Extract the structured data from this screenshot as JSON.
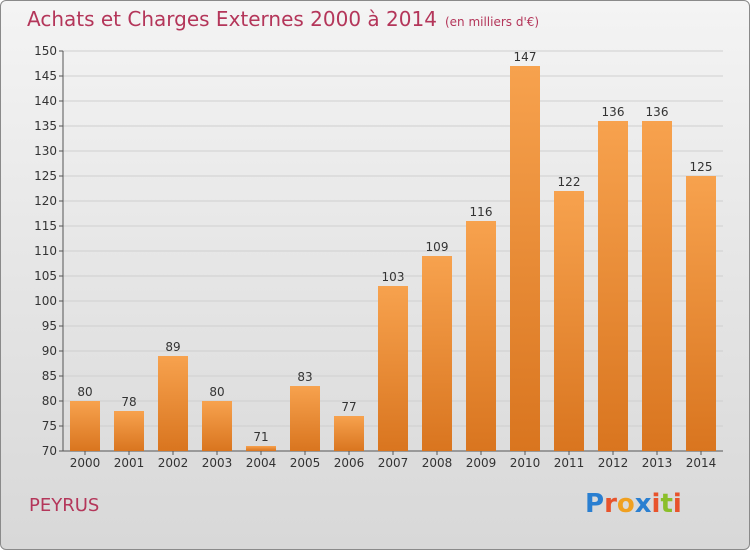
{
  "header": {
    "title": "Achats et Charges Externes 2000 à 2014",
    "subtitle": "(en milliers d'€)"
  },
  "footer": {
    "commune": "PEYRUS",
    "logo_text": "Proxiti"
  },
  "colors": {
    "title": "#b4365a",
    "bar_light": "#f7a24e",
    "bar_dark": "#d9751f",
    "logo_letters": [
      "#2a7fd1",
      "#e8532b",
      "#f0a020",
      "#2a7fd1",
      "#e8532b",
      "#8bbf2a",
      "#e8532b"
    ]
  },
  "chart_data": {
    "type": "bar",
    "categories": [
      "2000",
      "2001",
      "2002",
      "2003",
      "2004",
      "2005",
      "2006",
      "2007",
      "2008",
      "2009",
      "2010",
      "2011",
      "2012",
      "2013",
      "2014"
    ],
    "values": [
      80,
      78,
      89,
      80,
      71,
      83,
      77,
      103,
      109,
      116,
      147,
      122,
      136,
      136,
      125
    ],
    "ylim": [
      70,
      150
    ],
    "yticks": [
      70,
      75,
      80,
      85,
      90,
      95,
      100,
      105,
      110,
      115,
      120,
      125,
      130,
      135,
      140,
      145,
      150
    ],
    "grid": true,
    "data_labels": true
  }
}
